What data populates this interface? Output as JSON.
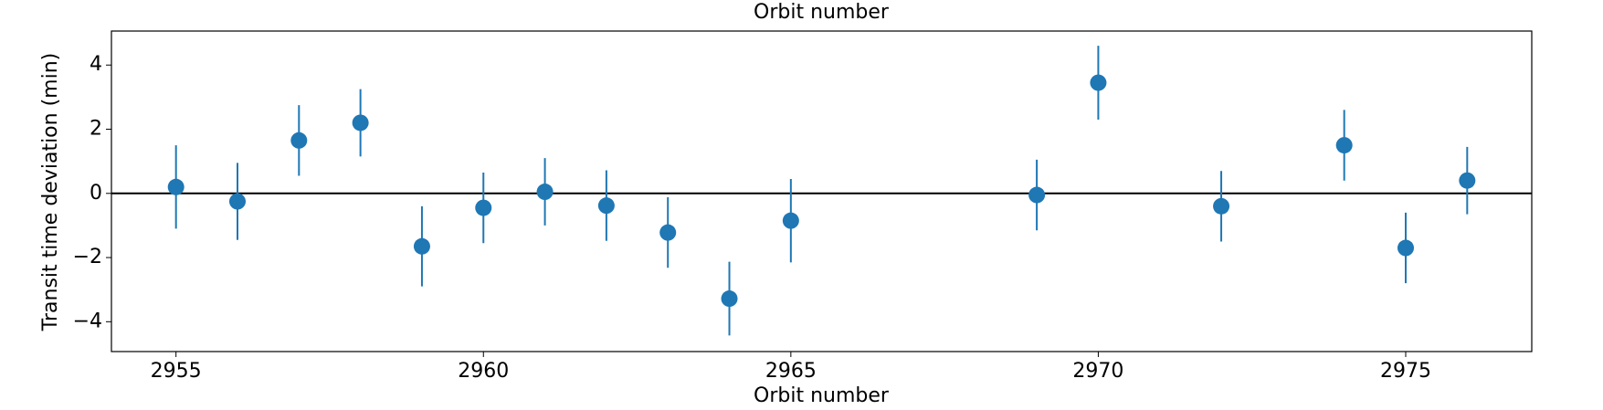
{
  "chart_data": {
    "type": "errorbar-scatter",
    "title": "Orbit number",
    "xlabel": "Orbit number",
    "ylabel": "Transit time deviation (min)",
    "color": "#1f77b4",
    "x": [
      2955,
      2956,
      2957,
      2958,
      2959,
      2960,
      2961,
      2962,
      2963,
      2964,
      2965,
      2969,
      2970,
      2972,
      2974,
      2975,
      2976
    ],
    "values": [
      0.2,
      -0.25,
      1.65,
      2.2,
      -1.65,
      -0.45,
      0.05,
      -0.38,
      -1.22,
      -3.28,
      -0.85,
      -0.05,
      3.45,
      -0.4,
      1.5,
      -1.7,
      0.4
    ],
    "errors": [
      1.3,
      1.2,
      1.1,
      1.05,
      1.25,
      1.1,
      1.05,
      1.1,
      1.1,
      1.15,
      1.3,
      1.1,
      1.15,
      1.1,
      1.1,
      1.1,
      1.05
    ],
    "reference_line": 0,
    "xlim": [
      2953.95,
      2977.05
    ],
    "ylim": [
      -4.93,
      5.06
    ],
    "xticks": [
      2955,
      2960,
      2965,
      2970,
      2975
    ],
    "yticks": [
      {
        "value": -4,
        "label": "−4"
      },
      {
        "value": -2,
        "label": "−2"
      },
      0,
      2,
      4
    ]
  }
}
